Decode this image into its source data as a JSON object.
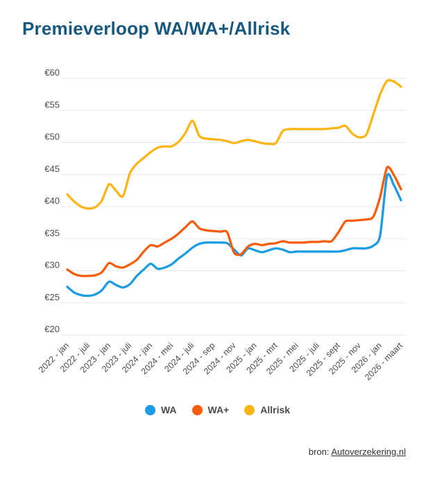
{
  "page": {
    "title": "Premieverloop WA/WA+/Allrisk"
  },
  "style": {
    "background": "#ffffff",
    "title_color": "#19587f",
    "axis_label_color": "#4d4d4d",
    "grid_color": "#e8e8e8",
    "legend_label_color": "#4a4a4a",
    "footer_color": "#333333"
  },
  "footer": {
    "prefix": "bron:",
    "link_label": "Autoverzekering.nl"
  },
  "chart_data": {
    "type": "line",
    "title": "Premieverloop WA/WA+/Allrisk",
    "currency_prefix": "€",
    "ylim": [
      20,
      60
    ],
    "y_ticks": [
      60,
      55,
      50,
      45,
      40,
      35,
      30,
      25,
      20
    ],
    "grid": "horizontal",
    "legend_position": "bottom",
    "categories": [
      "2022 - jan",
      "2022 - juli",
      "2023 - jan",
      "2023 - juli",
      "2024 - jan",
      "2024 - mei",
      "2024 - juli",
      "2024 - sep",
      "2024 - nov",
      "2025 - jan",
      "2025 - mrt",
      "2025 - mei",
      "2025 - juli",
      "2025 - sept",
      "2025 - nov",
      "2026 - jan",
      "2026 - maart"
    ],
    "points_per_tick": 3,
    "series": [
      {
        "name": "WA",
        "color": "#1c9ce3",
        "values": [
          27.5,
          26.6,
          26.2,
          26.1,
          26.3,
          27.0,
          28.3,
          27.8,
          27.4,
          27.9,
          29.2,
          30.2,
          31.1,
          30.3,
          30.5,
          31.0,
          31.9,
          32.7,
          33.6,
          34.2,
          34.4,
          34.4,
          34.4,
          34.3,
          33.3,
          32.4,
          33.5,
          33.2,
          32.9,
          33.2,
          33.5,
          33.3,
          32.9,
          33.0,
          33.0,
          33.0,
          33.0,
          33.0,
          33.0,
          33.0,
          33.2,
          33.5,
          33.5,
          33.5,
          33.9,
          35.5,
          44.8,
          43.3,
          41.0
        ]
      },
      {
        "name": "WA+",
        "color": "#f95d0b",
        "values": [
          30.2,
          29.5,
          29.2,
          29.2,
          29.3,
          29.8,
          31.2,
          30.7,
          30.5,
          31.0,
          31.7,
          33.0,
          34.0,
          33.8,
          34.4,
          35.0,
          35.8,
          36.8,
          37.7,
          36.6,
          36.3,
          36.2,
          36.1,
          36.0,
          32.8,
          32.6,
          33.8,
          34.2,
          34.0,
          34.2,
          34.3,
          34.6,
          34.4,
          34.4,
          34.4,
          34.5,
          34.5,
          34.6,
          34.6,
          36.0,
          37.7,
          37.8,
          37.9,
          38.0,
          38.4,
          41.5,
          46.1,
          44.9,
          42.7
        ]
      },
      {
        "name": "Allrisk",
        "color": "#fcb515",
        "values": [
          41.9,
          40.8,
          40.0,
          39.7,
          39.9,
          41.0,
          43.5,
          42.5,
          41.6,
          45.2,
          46.7,
          47.6,
          48.5,
          49.2,
          49.4,
          49.4,
          50.1,
          51.5,
          53.4,
          51.0,
          50.6,
          50.5,
          50.4,
          50.2,
          49.9,
          50.2,
          50.4,
          50.2,
          49.9,
          49.8,
          49.9,
          51.8,
          52.1,
          52.1,
          52.1,
          52.1,
          52.1,
          52.1,
          52.2,
          52.3,
          52.6,
          51.4,
          50.8,
          51.2,
          54.3,
          57.5,
          59.6,
          59.5,
          58.7
        ]
      }
    ]
  }
}
